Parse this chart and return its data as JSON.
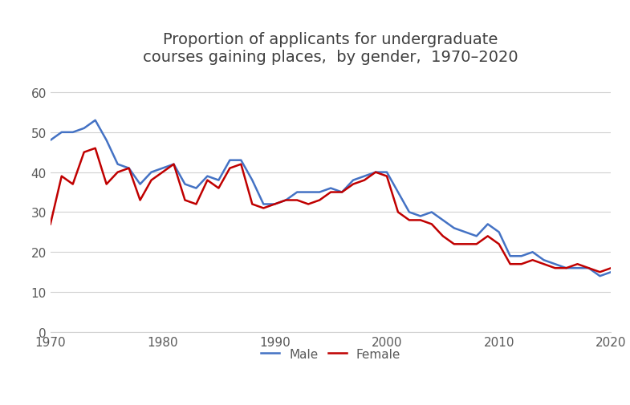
{
  "title": "Proportion of applicants for undergraduate\ncourses gaining places,  by gender,  1970–2020",
  "male_x": [
    1970,
    1971,
    1972,
    1973,
    1974,
    1975,
    1976,
    1977,
    1978,
    1979,
    1980,
    1981,
    1982,
    1983,
    1984,
    1985,
    1986,
    1987,
    1988,
    1989,
    1990,
    1991,
    1992,
    1993,
    1994,
    1995,
    1996,
    1997,
    1998,
    1999,
    2000,
    2001,
    2002,
    2003,
    2004,
    2005,
    2006,
    2007,
    2008,
    2009,
    2010,
    2011,
    2012,
    2013,
    2014,
    2015,
    2016,
    2017,
    2018,
    2019,
    2020
  ],
  "male_y": [
    48,
    50,
    50,
    51,
    53,
    48,
    42,
    41,
    37,
    40,
    41,
    42,
    37,
    36,
    39,
    38,
    43,
    43,
    38,
    32,
    32,
    33,
    35,
    35,
    35,
    36,
    35,
    38,
    39,
    40,
    40,
    35,
    30,
    29,
    30,
    28,
    26,
    25,
    24,
    27,
    25,
    19,
    19,
    20,
    18,
    17,
    16,
    16,
    16,
    14,
    15
  ],
  "female_x": [
    1970,
    1971,
    1972,
    1973,
    1974,
    1975,
    1976,
    1977,
    1978,
    1979,
    1980,
    1981,
    1982,
    1983,
    1984,
    1985,
    1986,
    1987,
    1988,
    1989,
    1990,
    1991,
    1992,
    1993,
    1994,
    1995,
    1996,
    1997,
    1998,
    1999,
    2000,
    2001,
    2002,
    2003,
    2004,
    2005,
    2006,
    2007,
    2008,
    2009,
    2010,
    2011,
    2012,
    2013,
    2014,
    2015,
    2016,
    2017,
    2018,
    2019,
    2020
  ],
  "female_y": [
    27,
    39,
    37,
    45,
    46,
    37,
    40,
    41,
    33,
    38,
    40,
    42,
    33,
    32,
    38,
    36,
    41,
    42,
    32,
    31,
    32,
    33,
    33,
    32,
    33,
    35,
    35,
    37,
    38,
    40,
    39,
    30,
    28,
    28,
    27,
    24,
    22,
    22,
    22,
    24,
    22,
    17,
    17,
    18,
    17,
    16,
    16,
    17,
    16,
    15,
    16
  ],
  "male_color": "#4472C4",
  "female_color": "#C00000",
  "xlim": [
    1970,
    2020
  ],
  "ylim": [
    0,
    65
  ],
  "yticks": [
    0,
    10,
    20,
    30,
    40,
    50,
    60
  ],
  "xticks": [
    1970,
    1980,
    1990,
    2000,
    2010,
    2020
  ],
  "xtick_labels": [
    "1970",
    "1980",
    "1990",
    "2000",
    "2010",
    "2020"
  ],
  "background_color": "#ffffff",
  "grid_color": "#d0d0d0",
  "legend_male": "Male",
  "legend_female": "Female",
  "line_width": 1.8,
  "title_fontsize": 14,
  "tick_fontsize": 11
}
